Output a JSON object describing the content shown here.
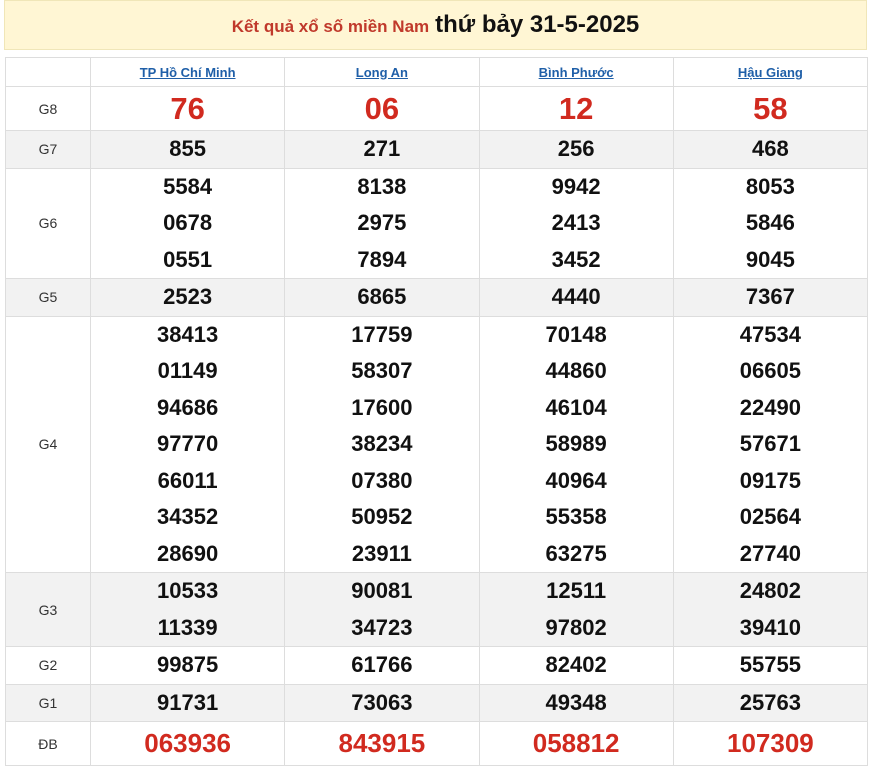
{
  "header": {
    "link": "Kết quả xổ số miền Nam",
    "title": "thứ bảy 31-5-2025"
  },
  "table": {
    "columns": [
      "TP Hồ Chí Minh",
      "Long An",
      "Bình Phước",
      "Hậu Giang"
    ],
    "rows": [
      {
        "label": "G8",
        "cells": [
          [
            "76"
          ],
          [
            "06"
          ],
          [
            "12"
          ],
          [
            "58"
          ]
        ]
      },
      {
        "label": "G7",
        "cells": [
          [
            "855"
          ],
          [
            "271"
          ],
          [
            "256"
          ],
          [
            "468"
          ]
        ]
      },
      {
        "label": "G6",
        "cells": [
          [
            "5584",
            "0678",
            "0551"
          ],
          [
            "8138",
            "2975",
            "7894"
          ],
          [
            "9942",
            "2413",
            "3452"
          ],
          [
            "8053",
            "5846",
            "9045"
          ]
        ]
      },
      {
        "label": "G5",
        "cells": [
          [
            "2523"
          ],
          [
            "6865"
          ],
          [
            "4440"
          ],
          [
            "7367"
          ]
        ]
      },
      {
        "label": "G4",
        "cells": [
          [
            "38413",
            "01149",
            "94686",
            "97770",
            "66011",
            "34352",
            "28690"
          ],
          [
            "17759",
            "58307",
            "17600",
            "38234",
            "07380",
            "50952",
            "23911"
          ],
          [
            "70148",
            "44860",
            "46104",
            "58989",
            "40964",
            "55358",
            "63275"
          ],
          [
            "47534",
            "06605",
            "22490",
            "57671",
            "09175",
            "02564",
            "27740"
          ]
        ]
      },
      {
        "label": "G3",
        "cells": [
          [
            "10533",
            "11339"
          ],
          [
            "90081",
            "34723"
          ],
          [
            "12511",
            "97802"
          ],
          [
            "24802",
            "39410"
          ]
        ]
      },
      {
        "label": "G2",
        "cells": [
          [
            "99875"
          ],
          [
            "61766"
          ],
          [
            "82402"
          ],
          [
            "55755"
          ]
        ]
      },
      {
        "label": "G1",
        "cells": [
          [
            "91731"
          ],
          [
            "73063"
          ],
          [
            "49348"
          ],
          [
            "25763"
          ]
        ]
      },
      {
        "label": "ĐB",
        "cells": [
          [
            "063936"
          ],
          [
            "843915"
          ],
          [
            "058812"
          ],
          [
            "107309"
          ]
        ]
      }
    ]
  }
}
